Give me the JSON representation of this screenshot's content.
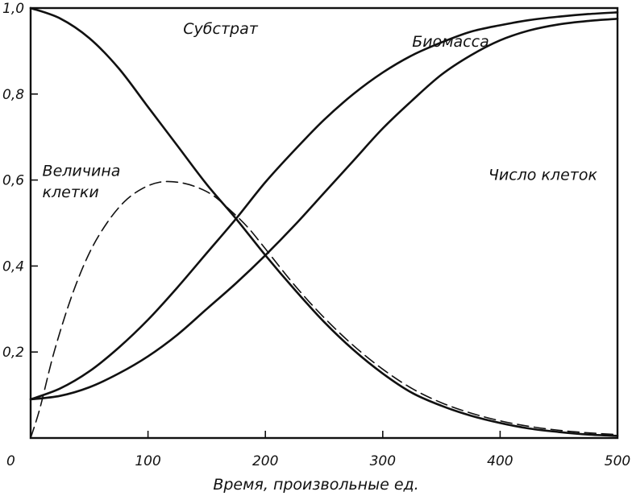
{
  "chart_data": {
    "type": "line",
    "title": "",
    "xlabel": "Время, произвольные ед.",
    "ylabel": "",
    "xlim": [
      0,
      500
    ],
    "ylim": [
      0,
      1.0
    ],
    "grid": false,
    "legend": "none",
    "x_ticks": [
      {
        "value": 100,
        "label": "100"
      },
      {
        "value": 200,
        "label": "200"
      },
      {
        "value": 300,
        "label": "300"
      },
      {
        "value": 400,
        "label": "400"
      },
      {
        "value": 500,
        "label": "500"
      }
    ],
    "x_origin_label": "0",
    "y_ticks": [
      {
        "value": 0.2,
        "label": "0,2"
      },
      {
        "value": 0.4,
        "label": "0,4"
      },
      {
        "value": 0.6,
        "label": "0,6"
      },
      {
        "value": 0.8,
        "label": "0,8"
      },
      {
        "value": 1.0,
        "label": "1,0"
      }
    ],
    "series": [
      {
        "key": "substrate",
        "name": "Субстрат",
        "style": "solid",
        "x": [
          0,
          25,
          50,
          75,
          100,
          125,
          150,
          175,
          200,
          225,
          250,
          275,
          300,
          325,
          350,
          375,
          400,
          425,
          450,
          475,
          500
        ],
        "y": [
          1.0,
          0.976,
          0.93,
          0.86,
          0.77,
          0.68,
          0.59,
          0.51,
          0.425,
          0.345,
          0.27,
          0.205,
          0.15,
          0.105,
          0.075,
          0.052,
          0.035,
          0.022,
          0.014,
          0.008,
          0.005
        ]
      },
      {
        "key": "biomass",
        "name": "Биомасса",
        "style": "solid",
        "x": [
          0,
          25,
          50,
          75,
          100,
          125,
          150,
          175,
          200,
          225,
          250,
          275,
          300,
          325,
          350,
          375,
          400,
          425,
          450,
          475,
          500
        ],
        "y": [
          0.09,
          0.115,
          0.155,
          0.21,
          0.275,
          0.35,
          0.43,
          0.51,
          0.595,
          0.67,
          0.74,
          0.8,
          0.85,
          0.89,
          0.92,
          0.945,
          0.96,
          0.972,
          0.98,
          0.986,
          0.99
        ]
      },
      {
        "key": "cell_number",
        "name": "Число клеток",
        "style": "solid",
        "x": [
          0,
          25,
          50,
          75,
          100,
          125,
          150,
          175,
          200,
          225,
          250,
          275,
          300,
          325,
          350,
          375,
          400,
          425,
          450,
          475,
          500
        ],
        "y": [
          0.09,
          0.098,
          0.118,
          0.15,
          0.19,
          0.24,
          0.3,
          0.36,
          0.425,
          0.495,
          0.57,
          0.645,
          0.72,
          0.785,
          0.845,
          0.89,
          0.925,
          0.948,
          0.962,
          0.97,
          0.975
        ]
      },
      {
        "key": "cell_size",
        "name": "Величина клетки",
        "style": "dashed",
        "x": [
          0,
          8,
          20,
          35,
          50,
          65,
          80,
          95,
          110,
          125,
          140,
          155,
          170,
          185,
          200,
          225,
          250,
          275,
          300,
          325,
          350,
          375,
          400,
          425,
          450,
          475,
          500
        ],
        "y": [
          0.0,
          0.07,
          0.2,
          0.33,
          0.43,
          0.5,
          0.55,
          0.58,
          0.595,
          0.595,
          0.585,
          0.565,
          0.53,
          0.49,
          0.44,
          0.355,
          0.28,
          0.215,
          0.16,
          0.115,
          0.082,
          0.058,
          0.04,
          0.027,
          0.018,
          0.012,
          0.008
        ]
      }
    ],
    "annotations": [
      {
        "series": "substrate",
        "text": "Субстрат",
        "at": [
          130,
          0.94
        ]
      },
      {
        "series": "biomass",
        "text": "Биомасса",
        "at": [
          325,
          0.91
        ]
      },
      {
        "series": "cell_number",
        "text": "Число клеток",
        "at": [
          390,
          0.6
        ]
      },
      {
        "series": "cell_size",
        "text": "Величина",
        "at": [
          10,
          0.61
        ]
      },
      {
        "series": "cell_size",
        "text": "клетки",
        "at": [
          10,
          0.56
        ]
      }
    ]
  }
}
